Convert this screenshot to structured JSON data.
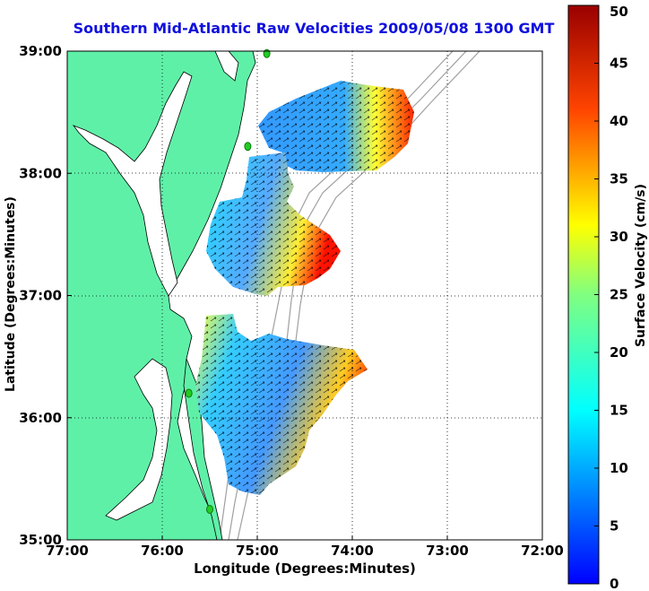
{
  "title": "Southern Mid-Atlantic Raw Velocities 2009/05/08 1300 GMT",
  "xlabel": "Longitude (Degrees:Minutes)",
  "ylabel": "Latitude (Degrees:Minutes)",
  "colorbar": {
    "label": "Surface Velocity (cm/s)",
    "ticks": [
      "0",
      "5",
      "10",
      "15",
      "20",
      "25",
      "30",
      "35",
      "40",
      "45",
      "50"
    ],
    "range": [
      0,
      50
    ],
    "colormap": "jet"
  },
  "map": {
    "x_ticks": [
      "77:00",
      "76:00",
      "75:00",
      "74:00",
      "73:00",
      "72:00"
    ],
    "y_ticks": [
      "39:00",
      "38:00",
      "37:00",
      "36:00",
      "35:00"
    ],
    "lon_range": [
      -77,
      -72
    ],
    "lat_range": [
      35,
      39
    ],
    "grid": "dotted",
    "land_color": "#5ff0a8",
    "bathymetry_color": "#a0a0a0",
    "station_color": "#22cc22",
    "stations": [
      {
        "lon": -74.9,
        "lat": 38.98
      },
      {
        "lon": -75.1,
        "lat": 38.22
      },
      {
        "lon": -75.72,
        "lat": 36.2
      },
      {
        "lon": -75.5,
        "lat": 35.25
      }
    ]
  }
}
